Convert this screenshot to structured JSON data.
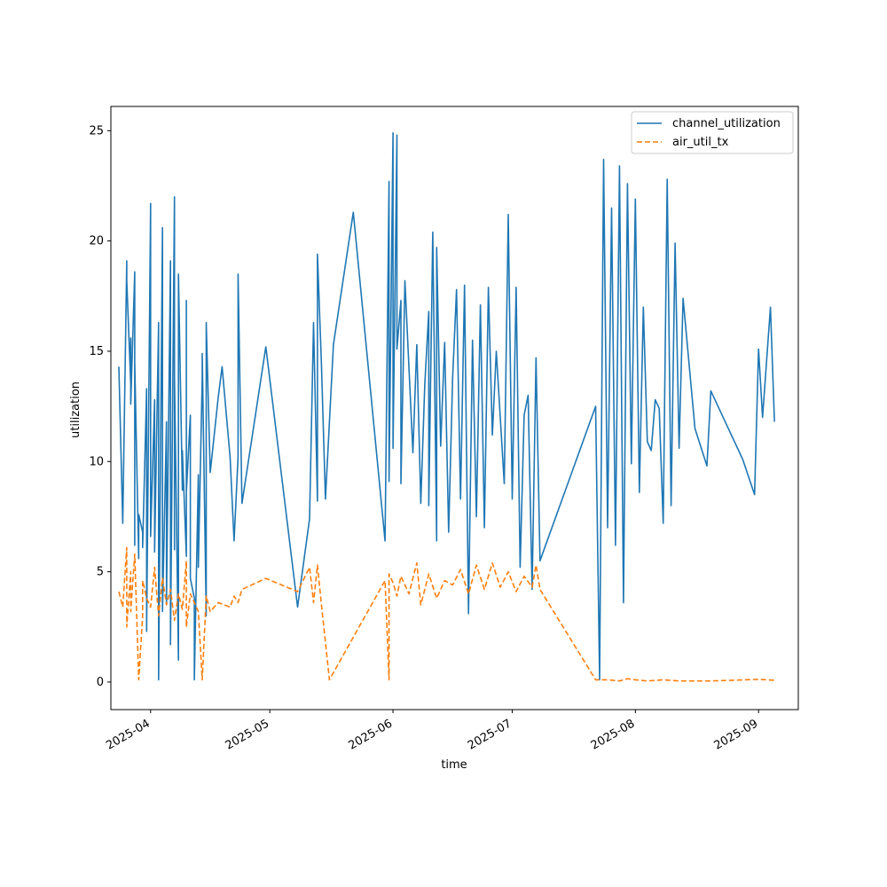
{
  "chart_data": {
    "type": "line",
    "title": "",
    "xlabel": "time",
    "ylabel": "utilization",
    "x_tick_labels": [
      "2025-04",
      "2025-05",
      "2025-06",
      "2025-07",
      "2025-08",
      "2025-09"
    ],
    "x_ticks": [
      "2025-04-01",
      "2025-05-01",
      "2025-06-01",
      "2025-07-01",
      "2025-08-01",
      "2025-09-01"
    ],
    "y_ticks": [
      0,
      5,
      10,
      15,
      20,
      25
    ],
    "xlim": [
      "2025-03-22",
      "2025-09-11"
    ],
    "ylim": [
      -1.25,
      26.1
    ],
    "grid": false,
    "legend_position": "top-right",
    "series": [
      {
        "name": "channel_utilization",
        "color": "#1f77b4",
        "style": "solid",
        "x": [
          "2025-03-24",
          "2025-03-25",
          "2025-03-26",
          "2025-03-26",
          "2025-03-27",
          "2025-03-27",
          "2025-03-27",
          "2025-03-28",
          "2025-03-28",
          "2025-03-28",
          "2025-03-29",
          "2025-03-29",
          "2025-03-30",
          "2025-03-30",
          "2025-03-31",
          "2025-03-31",
          "2025-04-01",
          "2025-04-01",
          "2025-04-02",
          "2025-04-02",
          "2025-04-03",
          "2025-04-03",
          "2025-04-04",
          "2025-04-04",
          "2025-04-05",
          "2025-04-05",
          "2025-04-06",
          "2025-04-06",
          "2025-04-07",
          "2025-04-07",
          "2025-04-07",
          "2025-04-08",
          "2025-04-08",
          "2025-04-09",
          "2025-04-09",
          "2025-04-10",
          "2025-04-10",
          "2025-04-10",
          "2025-04-11",
          "2025-04-11",
          "2025-04-12",
          "2025-04-12",
          "2025-04-13",
          "2025-04-13",
          "2025-04-14",
          "2025-04-14",
          "2025-04-15",
          "2025-04-15",
          "2025-04-16",
          "2025-04-17",
          "2025-04-18",
          "2025-04-19",
          "2025-04-21",
          "2025-04-22",
          "2025-04-23",
          "2025-04-23",
          "2025-04-24",
          "2025-04-30",
          "2025-05-08",
          "2025-05-11",
          "2025-05-12",
          "2025-05-13",
          "2025-05-13",
          "2025-05-14",
          "2025-05-15",
          "2025-05-17",
          "2025-05-22",
          "2025-05-30",
          "2025-05-31",
          "2025-05-31",
          "2025-06-01",
          "2025-06-01",
          "2025-06-02",
          "2025-06-02",
          "2025-06-03",
          "2025-06-03",
          "2025-06-04",
          "2025-06-06",
          "2025-06-07",
          "2025-06-08",
          "2025-06-09",
          "2025-06-10",
          "2025-06-10",
          "2025-06-11",
          "2025-06-12",
          "2025-06-12",
          "2025-06-13",
          "2025-06-14",
          "2025-06-15",
          "2025-06-16",
          "2025-06-17",
          "2025-06-18",
          "2025-06-19",
          "2025-06-20",
          "2025-06-21",
          "2025-06-22",
          "2025-06-23",
          "2025-06-24",
          "2025-06-25",
          "2025-06-26",
          "2025-06-27",
          "2025-06-28",
          "2025-06-29",
          "2025-06-30",
          "2025-07-01",
          "2025-07-02",
          "2025-07-03",
          "2025-07-04",
          "2025-07-05",
          "2025-07-06",
          "2025-07-07",
          "2025-07-08",
          "2025-07-22",
          "2025-07-23",
          "2025-07-24",
          "2025-07-25",
          "2025-07-26",
          "2025-07-27",
          "2025-07-28",
          "2025-07-29",
          "2025-07-30",
          "2025-07-31",
          "2025-08-01",
          "2025-08-02",
          "2025-08-03",
          "2025-08-04",
          "2025-08-05",
          "2025-08-06",
          "2025-08-07",
          "2025-08-08",
          "2025-08-09",
          "2025-08-10",
          "2025-08-11",
          "2025-08-12",
          "2025-08-13",
          "2025-08-16",
          "2025-08-19",
          "2025-08-20",
          "2025-08-28",
          "2025-08-31",
          "2025-09-01",
          "2025-09-02",
          "2025-09-04",
          "2025-09-05"
        ],
        "values": [
          14.3,
          7.2,
          19.1,
          18.2,
          13.5,
          15.6,
          12.6,
          18.6,
          6.2,
          14.5,
          5.6,
          7.6,
          6.8,
          6.1,
          13.3,
          2.3,
          21.7,
          6.6,
          12.8,
          5.9,
          16.3,
          0.1,
          20.6,
          3.2,
          11.8,
          3.6,
          19.1,
          1.7,
          22.0,
          6.0,
          13.9,
          1.0,
          18.5,
          8.7,
          10.5,
          5.7,
          17.3,
          8.6,
          12.1,
          4.7,
          3.8,
          0.1,
          9.4,
          5.2,
          13.8,
          14.9,
          3.0,
          16.3,
          9.5,
          11.2,
          12.9,
          14.3,
          10.2,
          6.4,
          10.2,
          18.5,
          8.1,
          15.2,
          3.4,
          7.4,
          16.3,
          8.2,
          19.4,
          14.4,
          8.3,
          15.3,
          21.3,
          6.4,
          22.7,
          9.1,
          24.9,
          10.6,
          24.8,
          15.1,
          17.3,
          9.0,
          18.2,
          10.4,
          15.3,
          8.1,
          13.5,
          16.8,
          8.0,
          20.4,
          6.4,
          19.7,
          10.7,
          15.4,
          6.8,
          13.8,
          17.8,
          8.3,
          18.0,
          3.1,
          15.5,
          7.5,
          17.1,
          7.0,
          17.9,
          11.2,
          15.0,
          12.0,
          9.0,
          21.2,
          8.3,
          17.9,
          5.2,
          12.1,
          13.0,
          4.2,
          14.7,
          5.5,
          12.5,
          0.1,
          23.7,
          7.0,
          21.5,
          6.2,
          23.4,
          3.6,
          22.6,
          9.9,
          21.9,
          8.6,
          17.0,
          10.9,
          10.5,
          12.8,
          12.4,
          7.2,
          22.8,
          8.0,
          19.9,
          10.6,
          17.4,
          11.5,
          9.8,
          13.2,
          10.1,
          8.5,
          15.1,
          12.0,
          17.0,
          11.8
        ],
        "note": "values are approximate, read from a dense trace"
      },
      {
        "name": "air_util_tx",
        "color": "#ff7f0e",
        "style": "dashed",
        "x": [
          "2025-03-24",
          "2025-03-25",
          "2025-03-26",
          "2025-03-26",
          "2025-03-27",
          "2025-03-27",
          "2025-03-28",
          "2025-03-29",
          "2025-03-30",
          "2025-03-30",
          "2025-03-31",
          "2025-04-01",
          "2025-04-02",
          "2025-04-03",
          "2025-04-04",
          "2025-04-05",
          "2025-04-06",
          "2025-04-07",
          "2025-04-08",
          "2025-04-09",
          "2025-04-10",
          "2025-04-10",
          "2025-04-11",
          "2025-04-12",
          "2025-04-13",
          "2025-04-14",
          "2025-04-15",
          "2025-04-16",
          "2025-04-18",
          "2025-04-21",
          "2025-04-22",
          "2025-04-23",
          "2025-04-24",
          "2025-04-30",
          "2025-05-08",
          "2025-05-11",
          "2025-05-12",
          "2025-05-13",
          "2025-05-14",
          "2025-05-16",
          "2025-05-30",
          "2025-05-31",
          "2025-05-31",
          "2025-06-01",
          "2025-06-02",
          "2025-06-03",
          "2025-06-05",
          "2025-06-07",
          "2025-06-08",
          "2025-06-10",
          "2025-06-12",
          "2025-06-14",
          "2025-06-16",
          "2025-06-18",
          "2025-06-20",
          "2025-06-22",
          "2025-06-24",
          "2025-06-26",
          "2025-06-28",
          "2025-06-30",
          "2025-07-02",
          "2025-07-04",
          "2025-07-06",
          "2025-07-07",
          "2025-07-08",
          "2025-07-22",
          "2025-07-25",
          "2025-07-28",
          "2025-07-30",
          "2025-08-01",
          "2025-08-04",
          "2025-08-08",
          "2025-08-12",
          "2025-08-20",
          "2025-09-01",
          "2025-09-05"
        ],
        "values": [
          4.1,
          3.4,
          6.1,
          2.5,
          5.0,
          3.2,
          5.8,
          0.1,
          3.0,
          4.6,
          3.8,
          3.4,
          5.2,
          3.0,
          4.7,
          3.5,
          4.2,
          2.8,
          4.0,
          3.3,
          5.5,
          2.5,
          4.0,
          3.6,
          3.2,
          0.1,
          3.9,
          3.2,
          3.6,
          3.4,
          3.9,
          3.6,
          4.2,
          4.7,
          4.1,
          5.2,
          3.6,
          5.3,
          3.5,
          0.1,
          4.6,
          0.1,
          4.9,
          4.5,
          3.9,
          4.8,
          4.0,
          5.4,
          3.5,
          4.9,
          3.8,
          4.6,
          4.4,
          5.1,
          4.0,
          5.3,
          4.2,
          5.4,
          4.3,
          5.0,
          4.1,
          4.8,
          4.3,
          5.3,
          4.2,
          0.1,
          0.1,
          0.05,
          0.15,
          0.1,
          0.05,
          0.1,
          0.05,
          0.05,
          0.12,
          0.08
        ]
      }
    ]
  }
}
